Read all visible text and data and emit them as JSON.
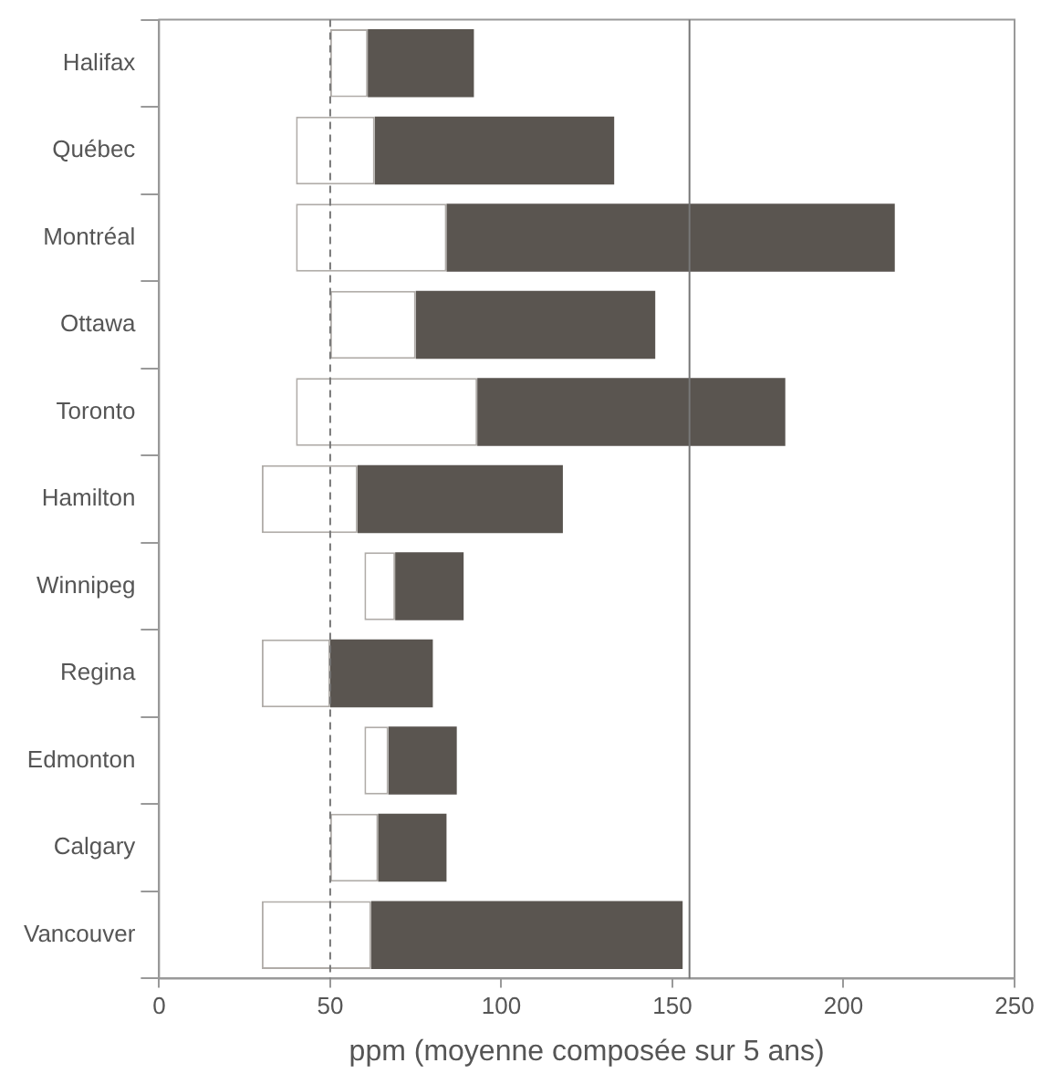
{
  "chart_data": {
    "type": "bar",
    "orientation": "horizontal",
    "categories": [
      "Halifax",
      "Québec",
      "Montréal",
      "Ottawa",
      "Toronto",
      "Hamilton",
      "Winnipeg",
      "Regina",
      "Edmonton",
      "Calgary",
      "Vancouver"
    ],
    "series": [
      {
        "color": "#ffffff",
        "base": [
          50,
          40,
          40,
          50,
          40,
          30,
          60,
          30,
          60,
          50,
          30
        ],
        "values": [
          11,
          23,
          44,
          25,
          53,
          28,
          9,
          20,
          7,
          14,
          32
        ]
      },
      {
        "color": "#5a5550",
        "base": [
          61,
          63,
          84,
          75,
          93,
          58,
          69,
          50,
          67,
          64,
          62
        ],
        "values": [
          31,
          70,
          131,
          70,
          90,
          60,
          20,
          30,
          20,
          20,
          91
        ]
      }
    ],
    "xlabel": "ppm (moyenne composée sur 5 ans)",
    "xlim": [
      0,
      250
    ],
    "xticks": [
      0,
      50,
      100,
      150,
      200,
      250
    ],
    "ref_lines": [
      {
        "axis": "x",
        "value": 50,
        "line_style": "dashed"
      },
      {
        "axis": "x",
        "value": 155,
        "line_style": "solid"
      }
    ],
    "grid": false,
    "legend": false
  }
}
